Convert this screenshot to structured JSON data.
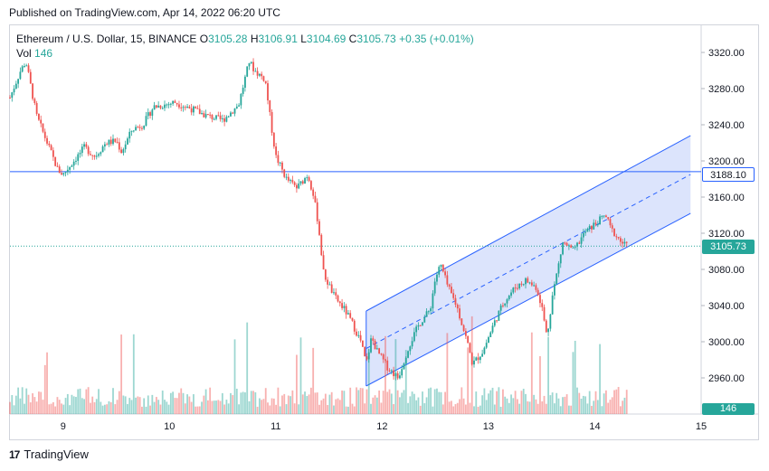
{
  "header": {
    "published": "Published on TradingView.com, Apr 14, 2022 06:20 UTC"
  },
  "legend": {
    "symbol": "Ethereum / U.S. Dollar, 15, BINANCE",
    "o_label": "O",
    "o": "3105.28",
    "h_label": "H",
    "h": "3106.91",
    "l_label": "L",
    "l": "3104.69",
    "c_label": "C",
    "c": "3105.73",
    "change": "+0.35 (+0.01%)",
    "vol_label": "Vol",
    "vol": "146"
  },
  "price_tags": {
    "line": "3188.10",
    "last": "3105.73",
    "vol": "146"
  },
  "footer": {
    "brand": "TradingView",
    "logo_text": "17"
  },
  "colors": {
    "up": "#26a69a",
    "down": "#ef5350",
    "channel": "#2962ff",
    "channel_fill": "#c9d6fb",
    "hline": "#2962ff",
    "lastline": "#26a69a"
  },
  "chart_data": {
    "type": "candlestick",
    "x_ticks": [
      "9",
      "10",
      "11",
      "12",
      "13",
      "14",
      "15"
    ],
    "y_ticks": [
      "3320.00",
      "3280.00",
      "3240.00",
      "3200.00",
      "3160.00",
      "3120.00",
      "3080.00",
      "3040.00",
      "3000.00",
      "2960.00"
    ],
    "ylim": [
      2920,
      3350
    ],
    "xlim": [
      8.5,
      15.0
    ],
    "horizontal_line": 3188.1,
    "last_price": 3105.73,
    "price_path": [
      [
        8.5,
        3270
      ],
      [
        8.6,
        3300
      ],
      [
        8.65,
        3310
      ],
      [
        8.75,
        3250
      ],
      [
        8.85,
        3220
      ],
      [
        8.95,
        3190
      ],
      [
        9.0,
        3185
      ],
      [
        9.1,
        3200
      ],
      [
        9.2,
        3215
      ],
      [
        9.3,
        3205
      ],
      [
        9.4,
        3220
      ],
      [
        9.5,
        3222
      ],
      [
        9.55,
        3210
      ],
      [
        9.65,
        3235
      ],
      [
        9.75,
        3240
      ],
      [
        9.85,
        3260
      ],
      [
        9.95,
        3262
      ],
      [
        10.05,
        3265
      ],
      [
        10.2,
        3258
      ],
      [
        10.35,
        3250
      ],
      [
        10.5,
        3245
      ],
      [
        10.65,
        3262
      ],
      [
        10.75,
        3310
      ],
      [
        10.8,
        3300
      ],
      [
        10.9,
        3290
      ],
      [
        10.95,
        3245
      ],
      [
        11.0,
        3205
      ],
      [
        11.1,
        3180
      ],
      [
        11.2,
        3170
      ],
      [
        11.3,
        3185
      ],
      [
        11.35,
        3165
      ],
      [
        11.4,
        3130
      ],
      [
        11.45,
        3075
      ],
      [
        11.55,
        3050
      ],
      [
        11.65,
        3035
      ],
      [
        11.72,
        3020
      ],
      [
        11.8,
        3000
      ],
      [
        11.85,
        2975
      ],
      [
        11.9,
        3005
      ],
      [
        11.95,
        2990
      ],
      [
        12.05,
        2972
      ],
      [
        12.15,
        2960
      ],
      [
        12.25,
        2995
      ],
      [
        12.35,
        3020
      ],
      [
        12.45,
        3035
      ],
      [
        12.5,
        3070
      ],
      [
        12.55,
        3085
      ],
      [
        12.62,
        3060
      ],
      [
        12.7,
        3040
      ],
      [
        12.8,
        3000
      ],
      [
        12.85,
        2975
      ],
      [
        12.95,
        2990
      ],
      [
        13.05,
        3020
      ],
      [
        13.15,
        3045
      ],
      [
        13.25,
        3060
      ],
      [
        13.35,
        3068
      ],
      [
        13.45,
        3060
      ],
      [
        13.5,
        3040
      ],
      [
        13.55,
        3005
      ],
      [
        13.6,
        3050
      ],
      [
        13.65,
        3080
      ],
      [
        13.7,
        3110
      ],
      [
        13.8,
        3100
      ],
      [
        13.9,
        3120
      ],
      [
        14.0,
        3130
      ],
      [
        14.1,
        3140
      ],
      [
        14.15,
        3125
      ],
      [
        14.25,
        3110
      ],
      [
        14.3,
        3105.73
      ]
    ],
    "channel": {
      "upper_start": [
        11.85,
        3034
      ],
      "upper_end": [
        14.9,
        3228
      ],
      "lower_start": [
        11.85,
        2951
      ],
      "lower_end": [
        14.9,
        3142
      ]
    },
    "volume_note": "relative volume bars beneath candles"
  }
}
